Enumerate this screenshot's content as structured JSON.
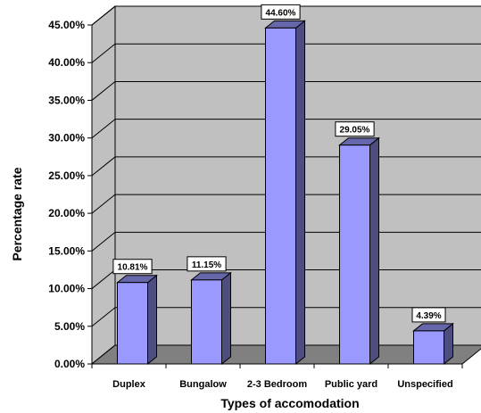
{
  "chart_data": {
    "type": "bar",
    "categories": [
      "Duplex",
      "Bungalow",
      "2-3 Bedroom",
      "Public yard",
      "Unspecified"
    ],
    "values": [
      10.81,
      11.15,
      44.6,
      29.05,
      4.39
    ],
    "data_labels": [
      "10.81%",
      "11.15%",
      "44.60%",
      "29.05%",
      "4.39%"
    ],
    "y_ticks": [
      0,
      5,
      10,
      15,
      20,
      25,
      30,
      35,
      40,
      45
    ],
    "y_tick_labels": [
      "0.00%",
      "5.00%",
      "10.00%",
      "15.00%",
      "20.00%",
      "25.00%",
      "30.00%",
      "35.00%",
      "40.00%",
      "45.00%"
    ],
    "ylim": [
      0,
      45
    ],
    "xlabel": "Types of accomodation",
    "ylabel": "Percentage  rate",
    "grid": true,
    "style": "3d",
    "colors": {
      "bar_front": "#9999ff",
      "bar_side": "#4d4d80",
      "bar_top": "#6666aa",
      "wall": "#c0c0c0",
      "floor": "#808080"
    }
  }
}
